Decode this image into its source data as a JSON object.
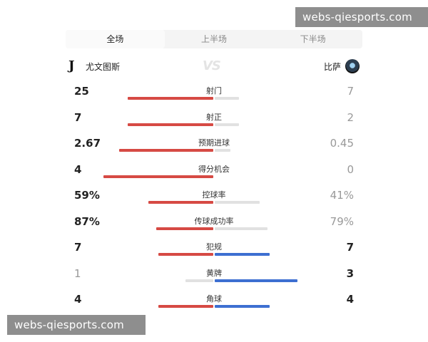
{
  "watermarks": [
    "webs-qiesports.com",
    "webs-qiesports.com"
  ],
  "tabs": [
    {
      "label": "全场",
      "active": true
    },
    {
      "label": "上半场",
      "active": false
    },
    {
      "label": "下半场",
      "active": false
    }
  ],
  "home": {
    "name": "尤文图斯",
    "logo_icon": "juventus-logo"
  },
  "away": {
    "name": "比萨",
    "logo_icon": "pisa-logo"
  },
  "vs_text": "VS",
  "colors": {
    "home_bar": "#d64a44",
    "away_bar": "#3d6fd1",
    "inactive_bar": "#e1e1e1"
  },
  "stats": [
    {
      "label": "射门",
      "home": "25",
      "away": "7",
      "home_share": 0.78,
      "leader": "home"
    },
    {
      "label": "射正",
      "home": "7",
      "away": "2",
      "home_share": 0.78,
      "leader": "home"
    },
    {
      "label": "预期进球",
      "home": "2.67",
      "away": "0.45",
      "home_share": 0.86,
      "leader": "home"
    },
    {
      "label": "得分机会",
      "home": "4",
      "away": "0",
      "home_share": 1.0,
      "leader": "home"
    },
    {
      "label": "控球率",
      "home": "59%",
      "away": "41%",
      "home_share": 0.59,
      "leader": "home"
    },
    {
      "label": "传球成功率",
      "home": "87%",
      "away": "79%",
      "home_share": 0.52,
      "leader": "home"
    },
    {
      "label": "犯规",
      "home": "7",
      "away": "7",
      "home_share": 0.5,
      "leader": "tie"
    },
    {
      "label": "黄牌",
      "home": "1",
      "away": "3",
      "home_share": 0.25,
      "leader": "away"
    },
    {
      "label": "角球",
      "home": "4",
      "away": "4",
      "home_share": 0.5,
      "leader": "tie"
    }
  ]
}
